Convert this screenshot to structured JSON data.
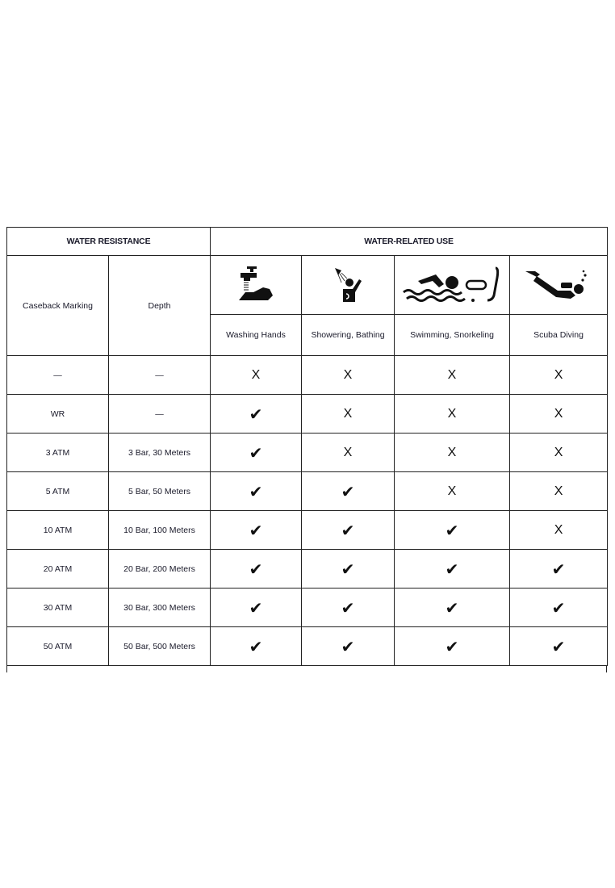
{
  "header": {
    "water_resistance": "WATER RESISTANCE",
    "water_related_use": "WATER-RELATED USE"
  },
  "columns": {
    "caseback": "Caseback Marking",
    "depth": "Depth"
  },
  "activities": [
    {
      "label": "Washing Hands",
      "icon": "washing-hands-icon"
    },
    {
      "label": "Showering, Bathing",
      "icon": "shower-icon"
    },
    {
      "label": "Swimming, Snorkeling",
      "icon": "swimming-snorkel-icon"
    },
    {
      "label": "Scuba Diving",
      "icon": "scuba-diver-icon"
    }
  ],
  "rows": [
    {
      "marking": "—",
      "depth": "—",
      "marks": [
        "x",
        "x",
        "x",
        "x"
      ]
    },
    {
      "marking": "WR",
      "depth": "—",
      "marks": [
        "check",
        "x",
        "x",
        "x"
      ]
    },
    {
      "marking": "3 ATM",
      "depth": "3 Bar, 30 Meters",
      "marks": [
        "check",
        "x",
        "x",
        "x"
      ]
    },
    {
      "marking": "5 ATM",
      "depth": "5 Bar, 50 Meters",
      "marks": [
        "check",
        "check",
        "x",
        "x"
      ]
    },
    {
      "marking": "10 ATM",
      "depth": "10 Bar, 100 Meters",
      "marks": [
        "check",
        "check",
        "check",
        "x"
      ]
    },
    {
      "marking": "20 ATM",
      "depth": "20 Bar, 200 Meters",
      "marks": [
        "check",
        "check",
        "check",
        "check"
      ]
    },
    {
      "marking": "30 ATM",
      "depth": "30 Bar, 300 Meters",
      "marks": [
        "check",
        "check",
        "check",
        "check"
      ]
    },
    {
      "marking": "50 ATM",
      "depth": "50 Bar, 500 Meters",
      "marks": [
        "check",
        "check",
        "check",
        "check"
      ]
    }
  ]
}
